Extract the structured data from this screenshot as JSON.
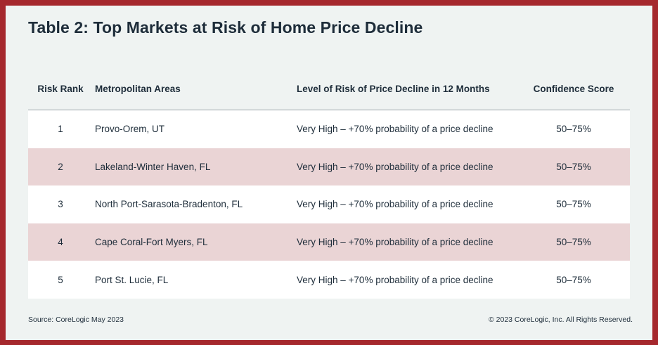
{
  "title": "Table 2: Top Markets at Risk of Home Price Decline",
  "headers": {
    "rank": "Risk Rank",
    "area": "Metropolitan Areas",
    "risk": "Level of Risk of Price Decline in 12 Months",
    "confidence": "Confidence Score"
  },
  "rows": [
    {
      "rank": "1",
      "area": "Provo-Orem, UT",
      "risk": "Very High – +70% probability of a price decline",
      "confidence": "50–75%"
    },
    {
      "rank": "2",
      "area": "Lakeland-Winter Haven, FL",
      "risk": "Very High – +70% probability of a price decline",
      "confidence": "50–75%"
    },
    {
      "rank": "3",
      "area": "North Port-Sarasota-Bradenton, FL",
      "risk": "Very High – +70% probability of a price decline",
      "confidence": "50–75%"
    },
    {
      "rank": "4",
      "area": "Cape Coral-Fort Myers, FL",
      "risk": "Very High – +70% probability of a price decline",
      "confidence": "50–75%"
    },
    {
      "rank": "5",
      "area": "Port St. Lucie, FL",
      "risk": "Very High – +70% probability of a price decline",
      "confidence": "50–75%"
    }
  ],
  "footer": {
    "source": "Source: CoreLogic May 2023",
    "copyright": "© 2023 CoreLogic, Inc. All Rights Reserved."
  },
  "colors": {
    "frame": "#a5282d",
    "panel": "#eff3f2",
    "row_alt": "#ead4d5",
    "text": "#1e2d3a"
  }
}
